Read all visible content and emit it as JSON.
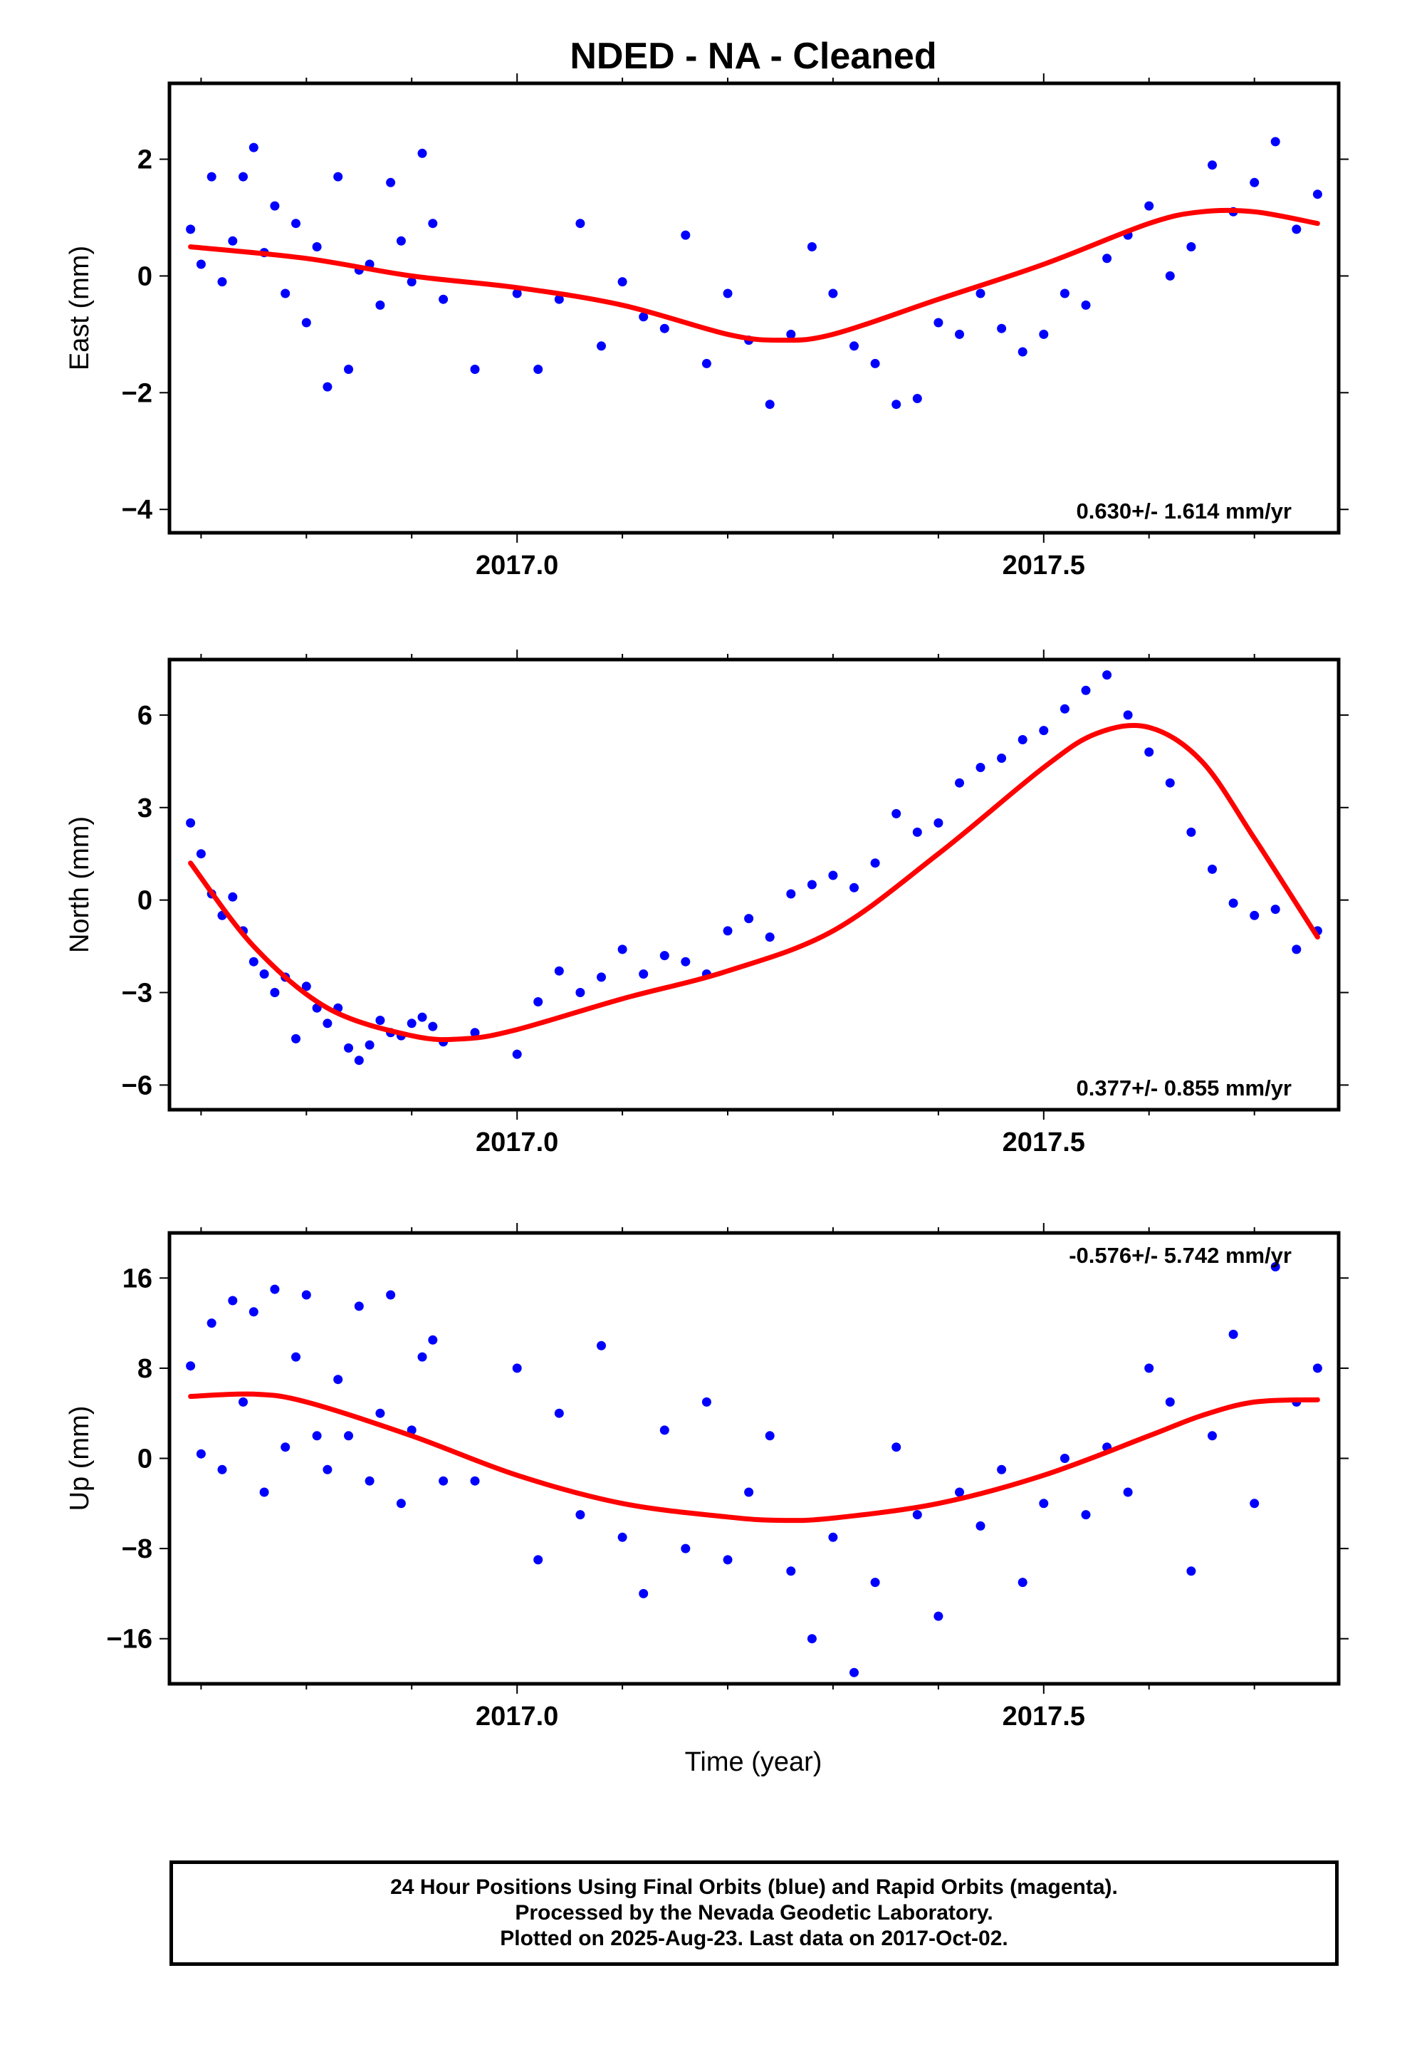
{
  "title": "NDED  - NA - Cleaned",
  "xlabel": "Time (year)",
  "footer": {
    "line1": "24 Hour Positions Using Final Orbits (blue) and Rapid Orbits (magenta).",
    "line2": "Processed by the Nevada Geodetic Laboratory.",
    "line3": "Plotted on 2025-Aug-23. Last data on 2017-Oct-02."
  },
  "colors": {
    "final_orbits": "#0000ff",
    "rapid_orbits": "#ff00ff",
    "model": "#ff0000",
    "frame": "#000000"
  },
  "chart_data": [
    {
      "type": "scatter",
      "ylabel": "East (mm)",
      "rate_label": "0.630+/- 1.614 mm/yr",
      "rate_label_position": "bottom-right",
      "xlim": [
        2016.67,
        2017.78
      ],
      "ylim": [
        -4.4,
        3.3
      ],
      "xticks": [
        2017.0,
        2017.5
      ],
      "xtick_labels": [
        "2017.0",
        "2017.5"
      ],
      "yticks": [
        -4,
        -2,
        0,
        2
      ],
      "ytick_labels": [
        "−4",
        "−2",
        "0",
        "2"
      ],
      "grid": false,
      "series": [
        {
          "x": [
            2016.69,
            2016.7,
            2016.71,
            2016.72,
            2016.73,
            2016.74,
            2016.75,
            2016.76,
            2016.77,
            2016.78,
            2016.79,
            2016.8,
            2016.81,
            2016.82,
            2016.83,
            2016.84,
            2016.85,
            2016.86,
            2016.87,
            2016.88,
            2016.89,
            2016.9,
            2016.91,
            2016.92,
            2016.93,
            2016.96,
            2017.0,
            2017.02,
            2017.04,
            2017.06,
            2017.08,
            2017.1,
            2017.12,
            2017.14,
            2017.16,
            2017.18,
            2017.2,
            2017.22,
            2017.24,
            2017.26,
            2017.28,
            2017.3,
            2017.32,
            2017.34,
            2017.36,
            2017.38,
            2017.4,
            2017.42,
            2017.44,
            2017.46,
            2017.48,
            2017.5,
            2017.52,
            2017.54,
            2017.56,
            2017.58,
            2017.6,
            2017.62,
            2017.64,
            2017.66,
            2017.68,
            2017.7,
            2017.72,
            2017.74,
            2017.76
          ],
          "y": [
            0.8,
            0.2,
            1.7,
            -0.1,
            0.6,
            1.7,
            2.2,
            0.4,
            1.2,
            -0.3,
            0.9,
            -0.8,
            0.5,
            -1.9,
            1.7,
            -1.6,
            0.1,
            0.2,
            -0.5,
            1.6,
            0.6,
            -0.1,
            2.1,
            0.9,
            -0.4,
            -1.6,
            -0.3,
            -1.6,
            -0.4,
            0.9,
            -1.2,
            -0.1,
            -0.7,
            -0.9,
            0.7,
            -1.5,
            -0.3,
            -1.1,
            -2.2,
            -1.0,
            0.5,
            -0.3,
            -1.2,
            -1.5,
            -2.2,
            -2.1,
            -0.8,
            -1.0,
            -0.3,
            -0.9,
            -1.3,
            -1.0,
            -0.3,
            -0.5,
            0.3,
            0.7,
            1.2,
            0.0,
            0.5,
            1.9,
            1.1,
            1.6,
            2.3,
            0.8,
            1.4
          ]
        }
      ],
      "model_curve": {
        "x": [
          2016.69,
          2016.8,
          2016.9,
          2017.0,
          2017.1,
          2017.2,
          2017.25,
          2017.3,
          2017.4,
          2017.5,
          2017.6,
          2017.65,
          2017.7,
          2017.76
        ],
        "y": [
          0.5,
          0.3,
          0.0,
          -0.2,
          -0.5,
          -1.0,
          -1.1,
          -1.0,
          -0.4,
          0.2,
          0.9,
          1.1,
          1.1,
          0.9
        ]
      }
    },
    {
      "type": "scatter",
      "ylabel": "North (mm)",
      "rate_label": "0.377+/- 0.855 mm/yr",
      "rate_label_position": "bottom-right",
      "xlim": [
        2016.67,
        2017.78
      ],
      "ylim": [
        -6.8,
        7.8
      ],
      "xticks": [
        2017.0,
        2017.5
      ],
      "xtick_labels": [
        "2017.0",
        "2017.5"
      ],
      "yticks": [
        -6,
        -3,
        0,
        3,
        6
      ],
      "ytick_labels": [
        "−6",
        "−3",
        "0",
        "3",
        "6"
      ],
      "grid": false,
      "series": [
        {
          "x": [
            2016.69,
            2016.7,
            2016.71,
            2016.72,
            2016.73,
            2016.74,
            2016.75,
            2016.76,
            2016.77,
            2016.78,
            2016.79,
            2016.8,
            2016.81,
            2016.82,
            2016.83,
            2016.84,
            2016.85,
            2016.86,
            2016.87,
            2016.88,
            2016.89,
            2016.9,
            2016.91,
            2016.92,
            2016.93,
            2016.96,
            2017.0,
            2017.02,
            2017.04,
            2017.06,
            2017.08,
            2017.1,
            2017.12,
            2017.14,
            2017.16,
            2017.18,
            2017.2,
            2017.22,
            2017.24,
            2017.26,
            2017.28,
            2017.3,
            2017.32,
            2017.34,
            2017.36,
            2017.38,
            2017.4,
            2017.42,
            2017.44,
            2017.46,
            2017.48,
            2017.5,
            2017.52,
            2017.54,
            2017.56,
            2017.58,
            2017.6,
            2017.62,
            2017.64,
            2017.66,
            2017.68,
            2017.7,
            2017.72,
            2017.74,
            2017.76
          ],
          "y": [
            2.5,
            1.5,
            0.2,
            -0.5,
            0.1,
            -1.0,
            -2.0,
            -2.4,
            -3.0,
            -2.5,
            -4.5,
            -2.8,
            -3.5,
            -4.0,
            -3.5,
            -4.8,
            -5.2,
            -4.7,
            -3.9,
            -4.3,
            -4.4,
            -4.0,
            -3.8,
            -4.1,
            -4.6,
            -4.3,
            -5.0,
            -3.3,
            -2.3,
            -3.0,
            -2.5,
            -1.6,
            -2.4,
            -1.8,
            -2.0,
            -2.4,
            -1.0,
            -0.6,
            -1.2,
            0.2,
            0.5,
            0.8,
            0.4,
            1.2,
            2.8,
            2.2,
            2.5,
            3.8,
            4.3,
            4.6,
            5.2,
            5.5,
            6.2,
            6.8,
            7.3,
            6.0,
            4.8,
            3.8,
            2.2,
            1.0,
            -0.1,
            -0.5,
            -0.3,
            -1.6,
            -1.0
          ]
        }
      ],
      "model_curve": {
        "x": [
          2016.69,
          2016.75,
          2016.82,
          2016.9,
          2016.95,
          2017.0,
          2017.1,
          2017.2,
          2017.3,
          2017.4,
          2017.5,
          2017.55,
          2017.6,
          2017.65,
          2017.7,
          2017.76
        ],
        "y": [
          1.2,
          -1.5,
          -3.5,
          -4.4,
          -4.5,
          -4.2,
          -3.2,
          -2.3,
          -1.0,
          1.5,
          4.3,
          5.4,
          5.6,
          4.5,
          2.0,
          -1.2
        ]
      }
    },
    {
      "type": "scatter",
      "ylabel": "Up (mm)",
      "rate_label": "-0.576+/- 5.742 mm/yr",
      "rate_label_position": "top-right",
      "xlim": [
        2016.67,
        2017.78
      ],
      "ylim": [
        -20,
        20
      ],
      "xticks": [
        2017.0,
        2017.5
      ],
      "xtick_labels": [
        "2017.0",
        "2017.5"
      ],
      "yticks": [
        -16,
        -8,
        0,
        8,
        16
      ],
      "ytick_labels": [
        "−16",
        "−8",
        "0",
        "8",
        "16"
      ],
      "grid": false,
      "series": [
        {
          "x": [
            2016.69,
            2016.7,
            2016.71,
            2016.72,
            2016.73,
            2016.74,
            2016.75,
            2016.76,
            2016.77,
            2016.78,
            2016.79,
            2016.8,
            2016.81,
            2016.82,
            2016.83,
            2016.84,
            2016.85,
            2016.86,
            2016.87,
            2016.88,
            2016.89,
            2016.9,
            2016.91,
            2016.92,
            2016.93,
            2016.96,
            2017.0,
            2017.02,
            2017.04,
            2017.06,
            2017.08,
            2017.1,
            2017.12,
            2017.14,
            2017.16,
            2017.18,
            2017.2,
            2017.22,
            2017.24,
            2017.26,
            2017.28,
            2017.3,
            2017.32,
            2017.34,
            2017.36,
            2017.38,
            2017.4,
            2017.42,
            2017.44,
            2017.46,
            2017.48,
            2017.5,
            2017.52,
            2017.54,
            2017.56,
            2017.58,
            2017.6,
            2017.62,
            2017.64,
            2017.66,
            2017.68,
            2017.7,
            2017.72,
            2017.74,
            2017.76
          ],
          "y": [
            8.2,
            0.4,
            12.0,
            -1.0,
            14.0,
            5.0,
            13.0,
            -3.0,
            15.0,
            1.0,
            9.0,
            14.5,
            2.0,
            -1.0,
            7.0,
            2.0,
            13.5,
            -2.0,
            4.0,
            14.5,
            -4.0,
            2.5,
            9.0,
            10.5,
            -2.0,
            -2.0,
            8.0,
            -9.0,
            4.0,
            -5.0,
            10.0,
            -7.0,
            -12.0,
            2.5,
            -8.0,
            5.0,
            -9.0,
            -3.0,
            2.0,
            -10.0,
            -16.0,
            -7.0,
            -19.0,
            -11.0,
            1.0,
            -5.0,
            -14.0,
            -3.0,
            -6.0,
            -1.0,
            -11.0,
            -4.0,
            0.0,
            -5.0,
            1.0,
            -3.0,
            8.0,
            5.0,
            -10.0,
            2.0,
            11.0,
            -4.0,
            17.0,
            5.0,
            8.0
          ]
        }
      ],
      "model_curve": {
        "x": [
          2016.69,
          2016.75,
          2016.8,
          2016.9,
          2017.0,
          2017.1,
          2017.2,
          2017.25,
          2017.3,
          2017.4,
          2017.5,
          2017.6,
          2017.65,
          2017.7,
          2017.76
        ],
        "y": [
          5.5,
          5.7,
          5.0,
          2.0,
          -1.5,
          -4.0,
          -5.2,
          -5.5,
          -5.3,
          -4.0,
          -1.5,
          2.0,
          3.8,
          5.0,
          5.2
        ]
      }
    }
  ]
}
